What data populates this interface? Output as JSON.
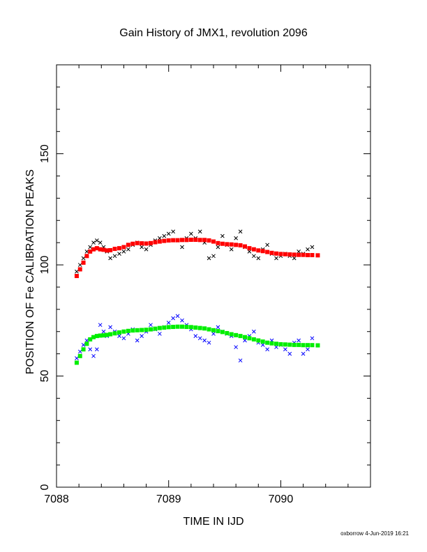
{
  "chart_data": {
    "type": "scatter",
    "title": "Gain History of JMX1, revolution 2096",
    "xlabel": "TIME IN IJD",
    "ylabel": "POSITION OF Fe CALIBRATION PEAKS",
    "xlim": [
      7088,
      7090.8
    ],
    "ylim": [
      0,
      190
    ],
    "x_ticks": [
      {
        "value": 7088,
        "label": "7088"
      },
      {
        "value": 7089,
        "label": "7089"
      },
      {
        "value": 7090,
        "label": "7090"
      }
    ],
    "y_ticks": [
      {
        "value": 0,
        "label": "0"
      },
      {
        "value": 50,
        "label": "50"
      },
      {
        "value": 100,
        "label": "100"
      },
      {
        "value": 150,
        "label": "150"
      }
    ],
    "grid": false,
    "series": [
      {
        "color": "#000000",
        "marker": "x",
        "x": [
          7088.18,
          7088.21,
          7088.24,
          7088.27,
          7088.3,
          7088.33,
          7088.36,
          7088.39,
          7088.42,
          7088.45,
          7088.48,
          7088.52,
          7088.56,
          7088.6,
          7088.64,
          7088.68,
          7088.72,
          7088.76,
          7088.8,
          7088.84,
          7088.88,
          7088.92,
          7088.96,
          7089.0,
          7089.04,
          7089.08,
          7089.12,
          7089.16,
          7089.2,
          7089.24,
          7089.28,
          7089.32,
          7089.36,
          7089.4,
          7089.44,
          7089.48,
          7089.52,
          7089.56,
          7089.6,
          7089.64,
          7089.68,
          7089.72,
          7089.76,
          7089.8,
          7089.84,
          7089.88,
          7089.92,
          7089.96,
          7090.0,
          7090.04,
          7090.08,
          7090.12,
          7090.16,
          7090.2,
          7090.24,
          7090.28
        ],
        "y": [
          97,
          100,
          103,
          106,
          108,
          110,
          111,
          110,
          108,
          106,
          103,
          104,
          105,
          106,
          107,
          109,
          110,
          108,
          107,
          109,
          111,
          112,
          113,
          114,
          115,
          111,
          108,
          112,
          114,
          112,
          115,
          110,
          103,
          104,
          108,
          113,
          109,
          107,
          112,
          115,
          108,
          106,
          104,
          103,
          107,
          109,
          105,
          103,
          104,
          105,
          104,
          103,
          106,
          105,
          107,
          108
        ]
      },
      {
        "color": "#ff0000",
        "marker": "square",
        "x": [
          7088.18,
          7088.21,
          7088.24,
          7088.27,
          7088.3,
          7088.33,
          7088.36,
          7088.39,
          7088.42,
          7088.45,
          7088.48,
          7088.52,
          7088.56,
          7088.6,
          7088.64,
          7088.68,
          7088.72,
          7088.76,
          7088.8,
          7088.84,
          7088.88,
          7088.92,
          7088.96,
          7089.0,
          7089.04,
          7089.08,
          7089.12,
          7089.16,
          7089.2,
          7089.24,
          7089.28,
          7089.32,
          7089.36,
          7089.4,
          7089.44,
          7089.48,
          7089.52,
          7089.56,
          7089.6,
          7089.64,
          7089.68,
          7089.72,
          7089.76,
          7089.8,
          7089.84,
          7089.88,
          7089.92,
          7089.96,
          7090.0,
          7090.04,
          7090.08,
          7090.12,
          7090.16,
          7090.2,
          7090.24,
          7090.28,
          7090.33
        ],
        "y": [
          95,
          98,
          101,
          104,
          106,
          107,
          107.5,
          107,
          106.8,
          106.5,
          106.6,
          107.2,
          107.5,
          108,
          109,
          109.5,
          109.8,
          109.7,
          109.6,
          109.8,
          110.2,
          110.5,
          110.8,
          111,
          111.1,
          111.1,
          111.2,
          111.2,
          111.3,
          111.3,
          111.2,
          111.2,
          111,
          110.5,
          109.8,
          109.5,
          109.3,
          109.2,
          109,
          108.8,
          108.3,
          107.5,
          107,
          106.5,
          106.2,
          105.8,
          105.4,
          105.1,
          104.9,
          104.8,
          104.7,
          104.6,
          104.5,
          104.5,
          104.4,
          104.4,
          104.3
        ]
      },
      {
        "color": "#0000ff",
        "marker": "x",
        "x": [
          7088.18,
          7088.21,
          7088.24,
          7088.27,
          7088.3,
          7088.33,
          7088.36,
          7088.39,
          7088.42,
          7088.45,
          7088.48,
          7088.52,
          7088.56,
          7088.6,
          7088.64,
          7088.68,
          7088.72,
          7088.76,
          7088.8,
          7088.84,
          7088.88,
          7088.92,
          7088.96,
          7089.0,
          7089.04,
          7089.08,
          7089.12,
          7089.16,
          7089.2,
          7089.24,
          7089.28,
          7089.32,
          7089.36,
          7089.4,
          7089.44,
          7089.48,
          7089.52,
          7089.56,
          7089.6,
          7089.64,
          7089.68,
          7089.72,
          7089.76,
          7089.8,
          7089.84,
          7089.88,
          7089.92,
          7089.96,
          7090.0,
          7090.04,
          7090.08,
          7090.12,
          7090.16,
          7090.2,
          7090.24,
          7090.28
        ],
        "y": [
          58,
          61,
          64,
          66,
          62,
          59,
          62,
          73,
          70,
          68,
          72,
          70,
          68,
          67,
          69,
          71,
          66,
          68,
          70,
          73,
          71,
          69,
          72,
          74,
          76,
          77,
          75,
          73,
          71,
          68,
          67,
          66,
          65,
          69,
          72,
          70,
          69,
          68,
          63,
          57,
          66,
          68,
          70,
          65,
          64,
          62,
          66,
          63,
          64,
          62,
          60,
          65,
          66,
          60,
          62,
          67
        ]
      },
      {
        "color": "#00ee00",
        "marker": "square",
        "x": [
          7088.18,
          7088.21,
          7088.24,
          7088.27,
          7088.3,
          7088.33,
          7088.36,
          7088.39,
          7088.42,
          7088.45,
          7088.48,
          7088.52,
          7088.56,
          7088.6,
          7088.64,
          7088.68,
          7088.72,
          7088.76,
          7088.8,
          7088.84,
          7088.88,
          7088.92,
          7088.96,
          7089.0,
          7089.04,
          7089.08,
          7089.12,
          7089.16,
          7089.2,
          7089.24,
          7089.28,
          7089.32,
          7089.36,
          7089.4,
          7089.44,
          7089.48,
          7089.52,
          7089.56,
          7089.6,
          7089.64,
          7089.68,
          7089.72,
          7089.76,
          7089.8,
          7089.84,
          7089.88,
          7089.92,
          7089.96,
          7090.0,
          7090.04,
          7090.08,
          7090.12,
          7090.16,
          7090.2,
          7090.24,
          7090.28,
          7090.33
        ],
        "y": [
          56,
          59,
          62,
          64.5,
          66.5,
          67.5,
          68,
          68.2,
          68.3,
          68.5,
          68.8,
          69.2,
          69.6,
          70,
          70.3,
          70.5,
          70.6,
          70.7,
          70.8,
          71,
          71.3,
          71.6,
          71.8,
          72,
          72.1,
          72.2,
          72.2,
          72.1,
          72,
          71.8,
          71.6,
          71.4,
          71,
          70.6,
          70.2,
          69.8,
          69.3,
          68.8,
          68.4,
          68,
          67.5,
          67,
          66.5,
          66,
          65.5,
          65,
          64.7,
          64.5,
          64.3,
          64.2,
          64.1,
          64,
          64,
          63.9,
          63.9,
          63.9,
          63.8
        ]
      }
    ]
  },
  "footer": {
    "credit": "oxborrow  4-Jun-2019 16:21"
  }
}
